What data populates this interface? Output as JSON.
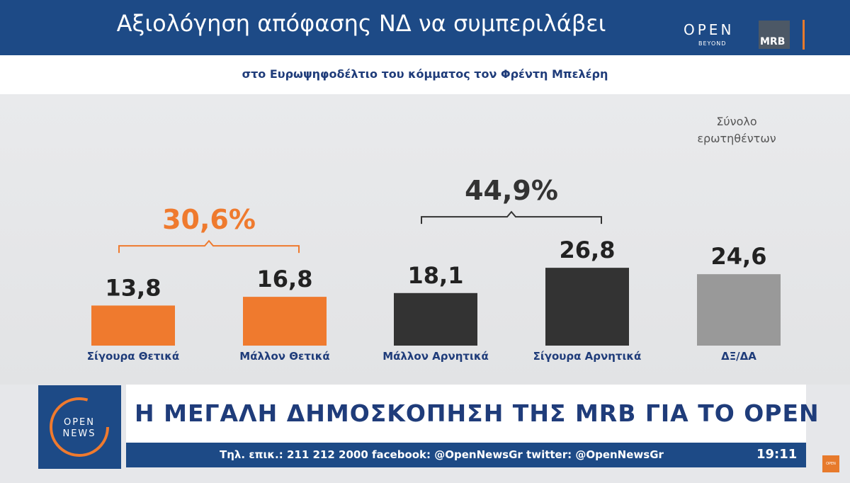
{
  "header": {
    "title": "Αξιολόγηση απόφασης ΝΔ να συμπεριλάβει",
    "subtitle": "στο Ευρωψηφοδέλτιο του κόμματος τον Φρέντη Μπελέρη",
    "open_logo": "OPEN",
    "open_logo_sub": "BEYOND",
    "mrb_logo": "MRB"
  },
  "chart_data": {
    "type": "bar",
    "categories": [
      "Σίγουρα Θετικά",
      "Μάλλον Θετικά",
      "Μάλλον Αρνητικά",
      "Σίγουρα Αρνητικά",
      "ΔΞ/ΔΑ"
    ],
    "values": [
      13.8,
      16.8,
      18.1,
      26.8,
      24.6
    ],
    "value_labels": [
      "13,8",
      "16,8",
      "18,1",
      "26,8",
      "24,6"
    ],
    "colors": [
      "#ef7a2e",
      "#ef7a2e",
      "#333333",
      "#333333",
      "#999999"
    ],
    "groups": [
      {
        "label": "30,6%",
        "from": 0,
        "to": 1,
        "color": "#ef7a2e"
      },
      {
        "label": "44,9%",
        "from": 2,
        "to": 3,
        "color": "#333333"
      }
    ],
    "total_label": [
      "Σύνολο",
      "ερωτηθέντων"
    ],
    "category_label_color": "#1f3c7a",
    "ylim": [
      0,
      30
    ]
  },
  "ticker": {
    "logo_top": "OPEN",
    "logo_bottom": "NEWS",
    "headline": "Η ΜΕΓΑΛΗ ΔΗΜΟΣΚΟΠΗΣΗ ΤΗΣ MRB ΓΙΑ ΤΟ OPEN",
    "info": "Τηλ. επικ.: 211 212 2000 facebook: @OpenNewsGr twitter: @OpenNewsGr",
    "time": "19:11",
    "corner_logo": "OPEN"
  },
  "colors": {
    "navy": "#1d4a86",
    "orange": "#ef7a2e",
    "dark": "#333333",
    "grey": "#999999"
  }
}
